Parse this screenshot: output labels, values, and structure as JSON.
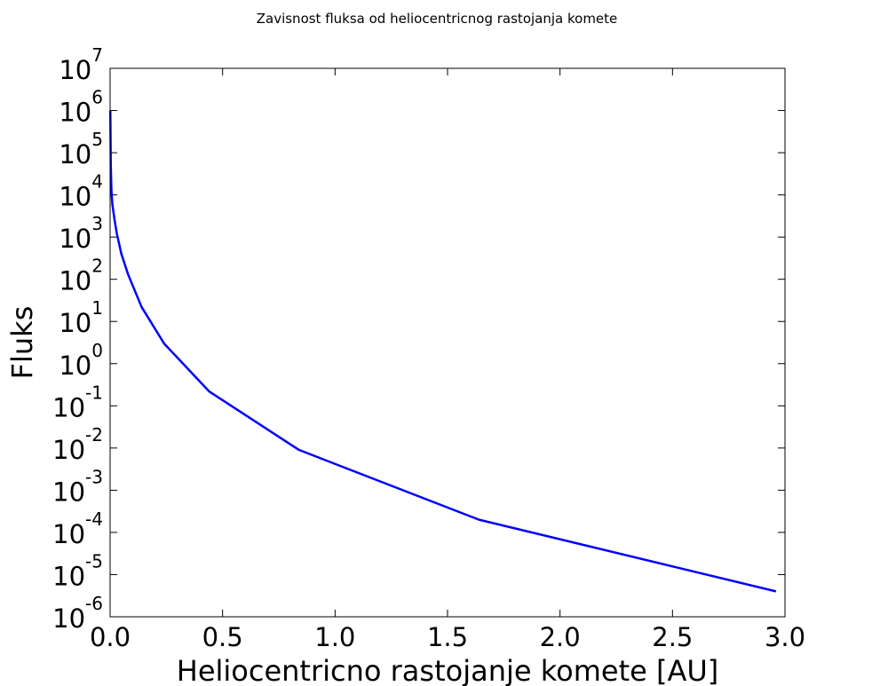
{
  "chart_data": {
    "type": "line",
    "title": "Zavisnost fluksa od heliocentricnog rastojanja komete",
    "xlabel": "Heliocentricno rastojanje komete [AU]",
    "ylabel": "Fluks",
    "xlim": [
      0.0,
      3.0
    ],
    "ylim": [
      1e-06,
      10000000.0
    ],
    "yscale": "log",
    "grid": false,
    "line_color": "#0000ff",
    "x_ticks": [
      "0.0",
      "0.5",
      "1.0",
      "1.5",
      "2.0",
      "2.5",
      "3.0"
    ],
    "y_ticks": [
      {
        "base": "10",
        "exp": "-6"
      },
      {
        "base": "10",
        "exp": "-5"
      },
      {
        "base": "10",
        "exp": "-4"
      },
      {
        "base": "10",
        "exp": "-3"
      },
      {
        "base": "10",
        "exp": "-2"
      },
      {
        "base": "10",
        "exp": "-1"
      },
      {
        "base": "10",
        "exp": "0"
      },
      {
        "base": "10",
        "exp": "1"
      },
      {
        "base": "10",
        "exp": "2"
      },
      {
        "base": "10",
        "exp": "3"
      },
      {
        "base": "10",
        "exp": "4"
      },
      {
        "base": "10",
        "exp": "5"
      },
      {
        "base": "10",
        "exp": "6"
      },
      {
        "base": "10",
        "exp": "7"
      }
    ],
    "series": [
      {
        "x": [
          0.001,
          0.003,
          0.006,
          0.01,
          0.02,
          0.03,
          0.05,
          0.08,
          0.14,
          0.24,
          0.44,
          0.84,
          1.64,
          2.96
        ],
        "y": [
          1000000,
          50000,
          12000,
          6000,
          2500,
          1200,
          400,
          130,
          22,
          3,
          0.22,
          0.009,
          0.0002,
          4e-06
        ]
      }
    ]
  }
}
